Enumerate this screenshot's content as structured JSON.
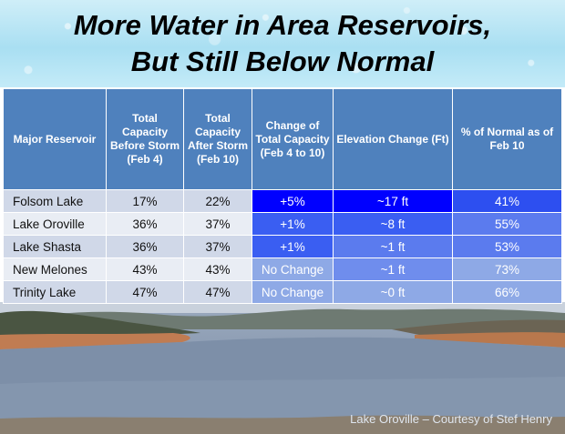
{
  "title": {
    "line1": "More Water in Area Reservoirs,",
    "line2": "But Still Below Normal"
  },
  "table": {
    "headers": [
      "Major Reservoir",
      "Total Capacity Before Storm (Feb 4)",
      "Total Capacity After Storm (Feb 10)",
      "Change of Total Capacity (Feb 4 to 10)",
      "Elevation Change (Ft)",
      "% of Normal as of Feb 10"
    ],
    "rows": [
      {
        "name": "Folsom Lake",
        "before": "17%",
        "after": "22%",
        "change": "+5%",
        "elevation": "~17 ft",
        "normal": "41%"
      },
      {
        "name": "Lake Oroville",
        "before": "36%",
        "after": "37%",
        "change": "+1%",
        "elevation": "~8 ft",
        "normal": "55%"
      },
      {
        "name": "Lake Shasta",
        "before": "36%",
        "after": "37%",
        "change": "+1%",
        "elevation": "~1 ft",
        "normal": "53%"
      },
      {
        "name": "New Melones",
        "before": "43%",
        "after": "43%",
        "change": "No Change",
        "elevation": "~1 ft",
        "normal": "73%"
      },
      {
        "name": "Trinity Lake",
        "before": "47%",
        "after": "47%",
        "change": "No Change",
        "elevation": "~0 ft",
        "normal": "66%"
      }
    ],
    "colors": {
      "header": "#4f81bd",
      "row_shade_dark": "#d0d8e8",
      "row_shade_light": "#e9edf4",
      "change_cells": [
        "#0000ff",
        "#3a5ef2",
        "#3a5ef2",
        "#8ea9e6",
        "#8ea9e6"
      ],
      "elevation_cells": [
        "#0000ff",
        "#3a5ef2",
        "#5b7bee",
        "#6f8ded",
        "#8ea9e6"
      ],
      "normal_cells": [
        "#2d4ff0",
        "#5b7bee",
        "#5b7bee",
        "#8ea9e6",
        "#8ea9e6"
      ]
    }
  },
  "photo": {
    "caption": "Lake Oroville – Courtesy of Stef Henry"
  }
}
